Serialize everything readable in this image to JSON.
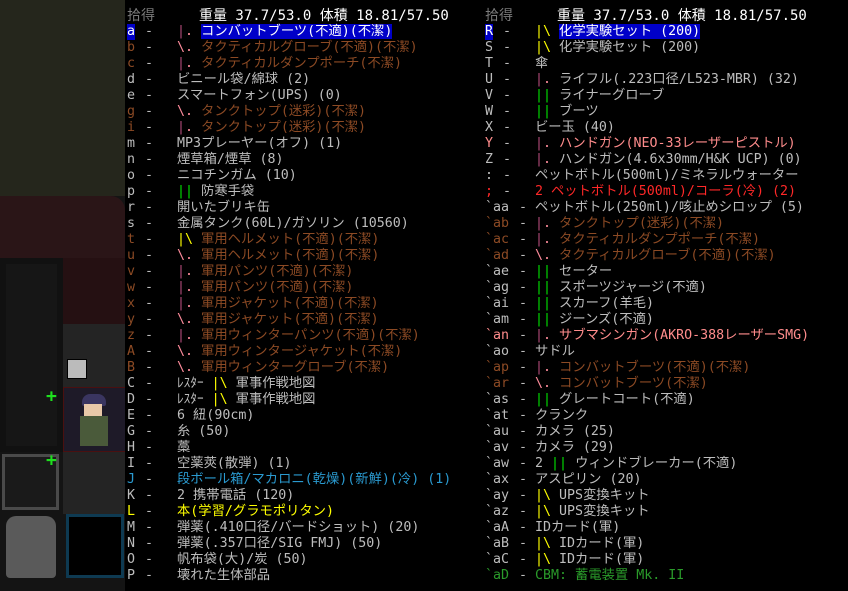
{
  "header": {
    "pick_label": "拾得",
    "stats": "重量 37.7/53.0 体積 18.81/57.50"
  },
  "colors": {
    "normal": "#bdbdbd",
    "damaged": "#8c4a24",
    "yellow": "#ffff00",
    "cyan": "#2a9ad0",
    "red": "#ff2828",
    "lightred": "#ff8c8c",
    "green": "#2a9a2a",
    "selected_bg": "#0000c8"
  },
  "marks": {
    "|.": [
      "#b04a78",
      "#ff8c9c"
    ],
    "\\.": [
      "#ff8c9c",
      "#ff8c9c"
    ],
    "|\\": [
      "#ffff00",
      "#ffff00"
    ],
    "||": [
      "#00e000",
      "#00e000"
    ]
  },
  "left_items": [
    {
      "key": "a",
      "mark": "|.",
      "name": "コンバットブーツ(不適)(不潔)",
      "color": "damaged",
      "selected": true
    },
    {
      "key": "b",
      "mark": "\\.",
      "name": "タクティカルグローブ(不適)(不潔)",
      "color": "damaged"
    },
    {
      "key": "c",
      "mark": "|.",
      "name": "タクティカルダンプポーチ(不潔)",
      "color": "damaged"
    },
    {
      "key": "d",
      "name": "ビニール袋/綿球 (2)",
      "color": "normal"
    },
    {
      "key": "e",
      "name": "スマートフォン(UPS) (0)",
      "color": "normal"
    },
    {
      "key": "g",
      "mark": "\\.",
      "name": "タンクトップ(迷彩)(不潔)",
      "color": "damaged"
    },
    {
      "key": "i",
      "mark": "|.",
      "name": "タンクトップ(迷彩)(不潔)",
      "color": "damaged"
    },
    {
      "key": "m",
      "name": "MP3プレーヤー(オフ) (1)",
      "color": "normal"
    },
    {
      "key": "n",
      "name": "煙草箱/煙草 (8)",
      "color": "normal"
    },
    {
      "key": "o",
      "name": "ニコチンガム (10)",
      "color": "normal"
    },
    {
      "key": "p",
      "mark": "||",
      "name": "防寒手袋",
      "color": "normal"
    },
    {
      "key": "r",
      "name": "開いたブリキ缶",
      "color": "normal"
    },
    {
      "key": "s",
      "name": "金属タンク(60L)/ガソリン (10560)",
      "color": "normal"
    },
    {
      "key": "t",
      "mark": "|\\",
      "name": "軍用ヘルメット(不適)(不潔)",
      "color": "damaged"
    },
    {
      "key": "u",
      "mark": "\\.",
      "name": "軍用ヘルメット(不適)(不潔)",
      "color": "damaged"
    },
    {
      "key": "v",
      "mark": "|.",
      "name": "軍用パンツ(不適)(不潔)",
      "color": "damaged"
    },
    {
      "key": "w",
      "mark": "|.",
      "name": "軍用パンツ(不適)(不潔)",
      "color": "damaged"
    },
    {
      "key": "x",
      "mark": "|.",
      "name": "軍用ジャケット(不適)(不潔)",
      "color": "damaged"
    },
    {
      "key": "y",
      "mark": "\\.",
      "name": "軍用ジャケット(不適)(不潔)",
      "color": "damaged"
    },
    {
      "key": "z",
      "mark": "|.",
      "name": "軍用ウィンターパンツ(不適)(不潔)",
      "color": "damaged"
    },
    {
      "key": "A",
      "mark": "\\.",
      "name": "軍用ウィンタージャケット(不潔)",
      "color": "damaged"
    },
    {
      "key": "B",
      "mark": "\\.",
      "name": "軍用ウィンターグローブ(不潔)",
      "color": "damaged"
    },
    {
      "key": "C",
      "prefix": "ﾚｽﾀｰ",
      "mark": "|\\",
      "name": "軍事作戦地図",
      "color": "normal"
    },
    {
      "key": "D",
      "prefix": "ﾚｽﾀｰ",
      "mark": "|\\",
      "name": "軍事作戦地図",
      "color": "normal"
    },
    {
      "key": "E",
      "name": "6 紐(90cm)",
      "color": "normal"
    },
    {
      "key": "G",
      "name": "糸 (50)",
      "color": "normal"
    },
    {
      "key": "H",
      "name": "藁",
      "color": "normal"
    },
    {
      "key": "I",
      "name": "空薬莢(散弾) (1)",
      "color": "normal"
    },
    {
      "key": "J",
      "name": "段ボール箱/マカロニ(乾燥)(新鮮)(冷) (1)",
      "color": "cyan"
    },
    {
      "key": "K",
      "name": "2 携帯電話 (120)",
      "color": "normal"
    },
    {
      "key": "L",
      "name": "本(学習/グラモポリタン)",
      "color": "yellow"
    },
    {
      "key": "M",
      "name": "弾薬(.410口径/バードショット) (20)",
      "color": "normal"
    },
    {
      "key": "N",
      "name": "弾薬(.357口径/SIG FMJ) (50)",
      "color": "normal"
    },
    {
      "key": "O",
      "name": "帆布袋(大)/炭 (50)",
      "color": "normal"
    },
    {
      "key": "P",
      "name": "壊れた生体部品",
      "color": "normal"
    }
  ],
  "right_items": [
    {
      "key": "R",
      "mark": "|\\",
      "name": "化学実験セット (200)",
      "color": "normal",
      "selected": true
    },
    {
      "key": "S",
      "mark": "|\\",
      "name": "化学実験セット (200)",
      "color": "normal"
    },
    {
      "key": "T",
      "name": "傘",
      "color": "normal"
    },
    {
      "key": "U",
      "mark": "|.",
      "name": "ライフル(.223口径/L523-MBR) (32)",
      "color": "normal"
    },
    {
      "key": "V",
      "mark": "||",
      "name": "ライナーグローブ",
      "color": "normal"
    },
    {
      "key": "W",
      "mark": "||",
      "name": "ブーツ",
      "color": "normal"
    },
    {
      "key": "X",
      "name": "ビー玉 (40)",
      "color": "normal"
    },
    {
      "key": "Y",
      "mark": "|.",
      "name": "ハンドガン(NEO-33レーザーピストル)",
      "color": "lightred"
    },
    {
      "key": "Z",
      "mark": "|.",
      "name": "ハンドガン(4.6x30mm/H&K UCP) (0)",
      "color": "normal"
    },
    {
      "key": ":",
      "name": "ペットボトル(500ml)/ミネラルウォーター",
      "color": "normal"
    },
    {
      "key": ";",
      "name": "2 ペットボトル(500ml)/コーラ(冷) (2)",
      "color": "red"
    },
    {
      "key": "`aa",
      "name": "ペットボトル(250ml)/咳止めシロップ (5)",
      "color": "normal"
    },
    {
      "key": "`ab",
      "mark": "|.",
      "name": "タンクトップ(迷彩)(不潔)",
      "color": "damaged"
    },
    {
      "key": "`ac",
      "mark": "|.",
      "name": "タクティカルダンプポーチ(不潔)",
      "color": "damaged"
    },
    {
      "key": "`ad",
      "mark": "\\.",
      "name": "タクティカルグローブ(不適)(不潔)",
      "color": "damaged"
    },
    {
      "key": "`ae",
      "mark": "||",
      "name": "セーター",
      "color": "normal"
    },
    {
      "key": "`ag",
      "mark": "||",
      "name": "スポーツジャージ(不適)",
      "color": "normal"
    },
    {
      "key": "`ai",
      "mark": "||",
      "name": "スカーフ(羊毛)",
      "color": "normal"
    },
    {
      "key": "`am",
      "mark": "||",
      "name": "ジーンズ(不適)",
      "color": "normal"
    },
    {
      "key": "`an",
      "mark": "|.",
      "name": "サブマシンガン(AKRO-388レーザーSMG)",
      "color": "lightred"
    },
    {
      "key": "`ao",
      "name": "サドル",
      "color": "normal"
    },
    {
      "key": "`ap",
      "mark": "|.",
      "name": "コンバットブーツ(不適)(不潔)",
      "color": "damaged"
    },
    {
      "key": "`ar",
      "mark": "\\.",
      "name": "コンバットブーツ(不潔)",
      "color": "damaged"
    },
    {
      "key": "`as",
      "mark": "||",
      "name": "グレートコート(不適)",
      "color": "normal"
    },
    {
      "key": "`at",
      "name": "クランク",
      "color": "normal"
    },
    {
      "key": "`au",
      "name": "カメラ (25)",
      "color": "normal"
    },
    {
      "key": "`av",
      "name": "カメラ (29)",
      "color": "normal"
    },
    {
      "key": "`aw",
      "prefix": "2",
      "mark": "||",
      "name": "ウィンドブレーカー(不適)",
      "color": "normal"
    },
    {
      "key": "`ax",
      "name": "アスピリン (20)",
      "color": "normal"
    },
    {
      "key": "`ay",
      "mark": "|\\",
      "name": "UPS変換キット",
      "color": "normal"
    },
    {
      "key": "`az",
      "mark": "|\\",
      "name": "UPS変換キット",
      "color": "normal"
    },
    {
      "key": "`aA",
      "name": "IDカード(軍)",
      "color": "normal"
    },
    {
      "key": "`aB",
      "mark": "|\\",
      "name": "IDカード(軍)",
      "color": "normal"
    },
    {
      "key": "`aC",
      "mark": "|\\",
      "name": "IDカード(軍)",
      "color": "normal"
    },
    {
      "key": "`aD",
      "name": "CBM: 蓄電装置 Mk. II",
      "color": "green"
    }
  ]
}
